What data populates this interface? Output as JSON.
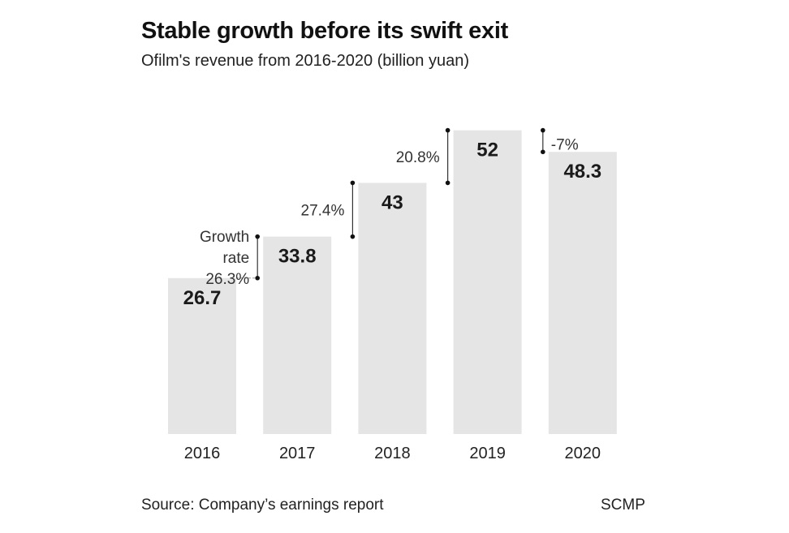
{
  "title": "Stable growth before its swift exit",
  "subtitle": "Ofilm's revenue from 2016-2020 (billion yuan)",
  "source": "Source: Company’s earnings report",
  "credit": "SCMP",
  "colors": {
    "bar": "#e5e5e5",
    "text": "#1a1a1a",
    "annotation": "#333333"
  },
  "chart_data": {
    "type": "bar",
    "categories": [
      "2016",
      "2017",
      "2018",
      "2019",
      "2020"
    ],
    "values": [
      26.7,
      33.8,
      43,
      52,
      48.3
    ],
    "value_labels": [
      "26.7",
      "33.8",
      "43",
      "52",
      "48.3"
    ],
    "growth_rates": [
      {
        "from": "2016",
        "to": "2017",
        "label": "26.3%",
        "prefix": [
          "Growth",
          "rate"
        ]
      },
      {
        "from": "2017",
        "to": "2018",
        "label": "27.4%"
      },
      {
        "from": "2018",
        "to": "2019",
        "label": "20.8%"
      },
      {
        "from": "2019",
        "to": "2020",
        "label": "-7%"
      }
    ],
    "grid": false
  }
}
